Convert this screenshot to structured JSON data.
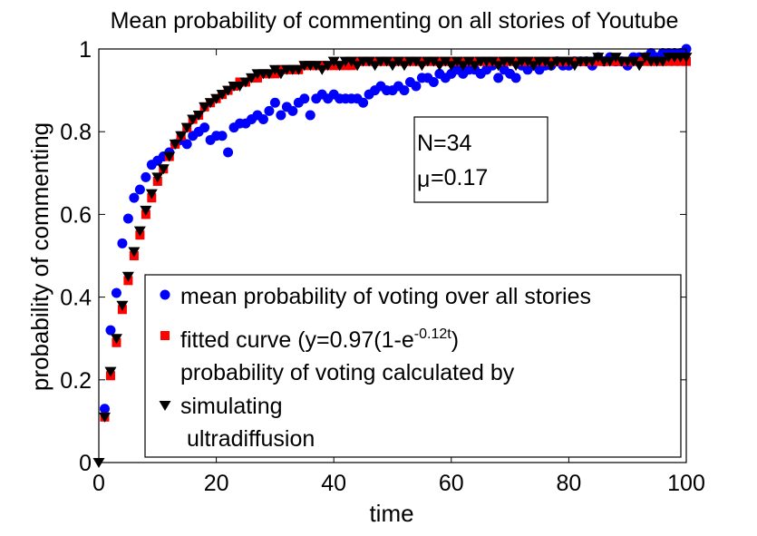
{
  "chart_data": {
    "type": "scatter",
    "title": "Mean probability of commenting on all stories of Youtube",
    "xlabel": "time",
    "ylabel": "probability of commenting",
    "xlim": [
      0,
      100
    ],
    "ylim": [
      0,
      1
    ],
    "x_ticks": [
      "0",
      "20",
      "40",
      "60",
      "80",
      "100"
    ],
    "y_ticks": [
      "0",
      "0.2",
      "0.4",
      "0.6",
      "0.8",
      "1"
    ],
    "annotation": {
      "n_label": "N=34",
      "mu_symbol": "μ",
      "mu_value": "=0.17"
    },
    "legend": {
      "placement": "lower-right",
      "entries": [
        {
          "marker": "circle",
          "color": "#0000ff",
          "text": "mean probability of voting over all stories"
        },
        {
          "marker": "square",
          "color": "#ff0000",
          "text_main": "fitted curve (y=0.97(1-e",
          "text_sup": "-0.12t",
          "text_end": ")"
        },
        {
          "marker": "triangle-down",
          "color": "#000000",
          "lines": [
            "probability of voting calculated by",
            "simulating",
            "ultradiffusion"
          ]
        }
      ]
    },
    "series": [
      {
        "name": "mean probability of voting over all stories",
        "marker": "circle",
        "color": "#0000ff",
        "x": [
          1,
          2,
          3,
          4,
          5,
          6,
          7,
          8,
          9,
          10,
          11,
          12,
          13,
          14,
          15,
          16,
          17,
          18,
          19,
          20,
          21,
          22,
          23,
          24,
          25,
          26,
          27,
          28,
          29,
          30,
          31,
          32,
          33,
          34,
          35,
          36,
          37,
          38,
          39,
          40,
          41,
          42,
          43,
          44,
          45,
          46,
          47,
          48,
          49,
          50,
          51,
          52,
          53,
          54,
          55,
          56,
          57,
          58,
          59,
          60,
          61,
          62,
          63,
          64,
          65,
          66,
          67,
          68,
          69,
          70,
          71,
          72,
          73,
          74,
          75,
          76,
          77,
          78,
          79,
          80,
          81,
          82,
          83,
          84,
          85,
          86,
          87,
          88,
          89,
          90,
          91,
          92,
          93,
          94,
          95,
          96,
          97,
          98,
          99,
          100
        ],
        "y": [
          0.13,
          0.32,
          0.41,
          0.53,
          0.59,
          0.64,
          0.66,
          0.69,
          0.72,
          0.73,
          0.74,
          0.75,
          0.77,
          0.78,
          0.77,
          0.79,
          0.8,
          0.81,
          0.78,
          0.79,
          0.79,
          0.75,
          0.81,
          0.82,
          0.82,
          0.83,
          0.84,
          0.83,
          0.85,
          0.87,
          0.84,
          0.86,
          0.85,
          0.87,
          0.88,
          0.84,
          0.88,
          0.89,
          0.88,
          0.89,
          0.88,
          0.88,
          0.88,
          0.88,
          0.87,
          0.89,
          0.9,
          0.91,
          0.9,
          0.9,
          0.91,
          0.9,
          0.92,
          0.91,
          0.93,
          0.93,
          0.92,
          0.94,
          0.93,
          0.94,
          0.95,
          0.94,
          0.95,
          0.95,
          0.94,
          0.95,
          0.96,
          0.93,
          0.95,
          0.94,
          0.93,
          0.96,
          0.95,
          0.96,
          0.95,
          0.96,
          0.96,
          0.97,
          0.96,
          0.96,
          0.97,
          0.97,
          0.97,
          0.96,
          0.98,
          0.97,
          0.98,
          0.97,
          0.97,
          0.96,
          0.98,
          0.98,
          0.98,
          0.99,
          0.98,
          0.99,
          0.99,
          0.99,
          0.99,
          1.0
        ]
      },
      {
        "name": "fitted curve (y=0.97(1-e^-0.12t)",
        "marker": "square",
        "color": "#ff0000",
        "x": [
          1,
          2,
          3,
          4,
          5,
          6,
          7,
          8,
          9,
          10,
          11,
          12,
          13,
          14,
          15,
          16,
          17,
          18,
          19,
          20,
          21,
          22,
          23,
          24,
          25,
          26,
          27,
          28,
          29,
          30,
          31,
          32,
          33,
          34,
          35,
          36,
          37,
          38,
          39,
          40,
          41,
          42,
          43,
          44,
          45,
          46,
          47,
          48,
          49,
          50,
          51,
          52,
          53,
          54,
          55,
          56,
          57,
          58,
          59,
          60,
          61,
          62,
          63,
          64,
          65,
          66,
          67,
          68,
          69,
          70,
          71,
          72,
          73,
          74,
          75,
          76,
          77,
          78,
          79,
          80,
          81,
          82,
          83,
          84,
          85,
          86,
          87,
          88,
          89,
          90,
          91,
          92,
          93,
          94,
          95,
          96,
          97,
          98,
          99,
          100
        ],
        "y": [
          0.11,
          0.21,
          0.29,
          0.37,
          0.44,
          0.5,
          0.55,
          0.6,
          0.64,
          0.68,
          0.71,
          0.74,
          0.77,
          0.79,
          0.81,
          0.83,
          0.84,
          0.86,
          0.87,
          0.88,
          0.89,
          0.9,
          0.91,
          0.92,
          0.92,
          0.93,
          0.93,
          0.94,
          0.94,
          0.94,
          0.95,
          0.95,
          0.95,
          0.95,
          0.96,
          0.96,
          0.96,
          0.96,
          0.96,
          0.96,
          0.96,
          0.96,
          0.96,
          0.97,
          0.97,
          0.97,
          0.97,
          0.97,
          0.97,
          0.97,
          0.97,
          0.97,
          0.97,
          0.97,
          0.97,
          0.97,
          0.97,
          0.97,
          0.97,
          0.97,
          0.97,
          0.97,
          0.97,
          0.97,
          0.97,
          0.97,
          0.97,
          0.97,
          0.97,
          0.97,
          0.97,
          0.97,
          0.97,
          0.97,
          0.97,
          0.97,
          0.97,
          0.97,
          0.97,
          0.97,
          0.97,
          0.97,
          0.97,
          0.97,
          0.97,
          0.97,
          0.97,
          0.97,
          0.97,
          0.97,
          0.97,
          0.97,
          0.97,
          0.97,
          0.97,
          0.97,
          0.97,
          0.97,
          0.97,
          0.97
        ]
      },
      {
        "name": "probability of voting calculated by simulating ultradiffusion",
        "marker": "triangle-down",
        "color": "#000000",
        "x": [
          0,
          1,
          2,
          3,
          4,
          5,
          6,
          7,
          8,
          9,
          10,
          11,
          12,
          13,
          14,
          15,
          16,
          17,
          18,
          19,
          20,
          21,
          22,
          23,
          24,
          25,
          26,
          27,
          28,
          29,
          30,
          31,
          32,
          33,
          34,
          35,
          36,
          37,
          38,
          39,
          40,
          41,
          42,
          43,
          44,
          45,
          46,
          47,
          48,
          49,
          50,
          51,
          52,
          53,
          54,
          55,
          56,
          57,
          58,
          59,
          60,
          61,
          62,
          63,
          64,
          65,
          66,
          67,
          68,
          69,
          70,
          71,
          72,
          73,
          74,
          75,
          76,
          77,
          78,
          79,
          80,
          81,
          82,
          83,
          84,
          85,
          86,
          87,
          88,
          89,
          90,
          91,
          92,
          93,
          94,
          95,
          96,
          97,
          98,
          99,
          100
        ],
        "y": [
          0.0,
          0.11,
          0.22,
          0.3,
          0.38,
          0.45,
          0.51,
          0.56,
          0.61,
          0.65,
          0.69,
          0.71,
          0.74,
          0.77,
          0.79,
          0.81,
          0.83,
          0.84,
          0.86,
          0.87,
          0.88,
          0.89,
          0.9,
          0.91,
          0.91,
          0.92,
          0.93,
          0.94,
          0.94,
          0.94,
          0.95,
          0.94,
          0.95,
          0.95,
          0.95,
          0.96,
          0.96,
          0.96,
          0.95,
          0.96,
          0.97,
          0.96,
          0.97,
          0.97,
          0.96,
          0.97,
          0.97,
          0.96,
          0.97,
          0.97,
          0.96,
          0.97,
          0.96,
          0.97,
          0.97,
          0.96,
          0.97,
          0.97,
          0.96,
          0.97,
          0.96,
          0.97,
          0.96,
          0.97,
          0.96,
          0.97,
          0.97,
          0.97,
          0.96,
          0.97,
          0.97,
          0.96,
          0.97,
          0.97,
          0.96,
          0.97,
          0.97,
          0.96,
          0.97,
          0.97,
          0.97,
          0.96,
          0.97,
          0.97,
          0.97,
          0.98,
          0.97,
          0.97,
          0.98,
          0.97,
          0.97,
          0.97,
          0.96,
          0.98,
          0.97,
          0.97,
          0.97,
          0.98,
          0.98,
          0.98,
          0.98
        ]
      }
    ]
  }
}
